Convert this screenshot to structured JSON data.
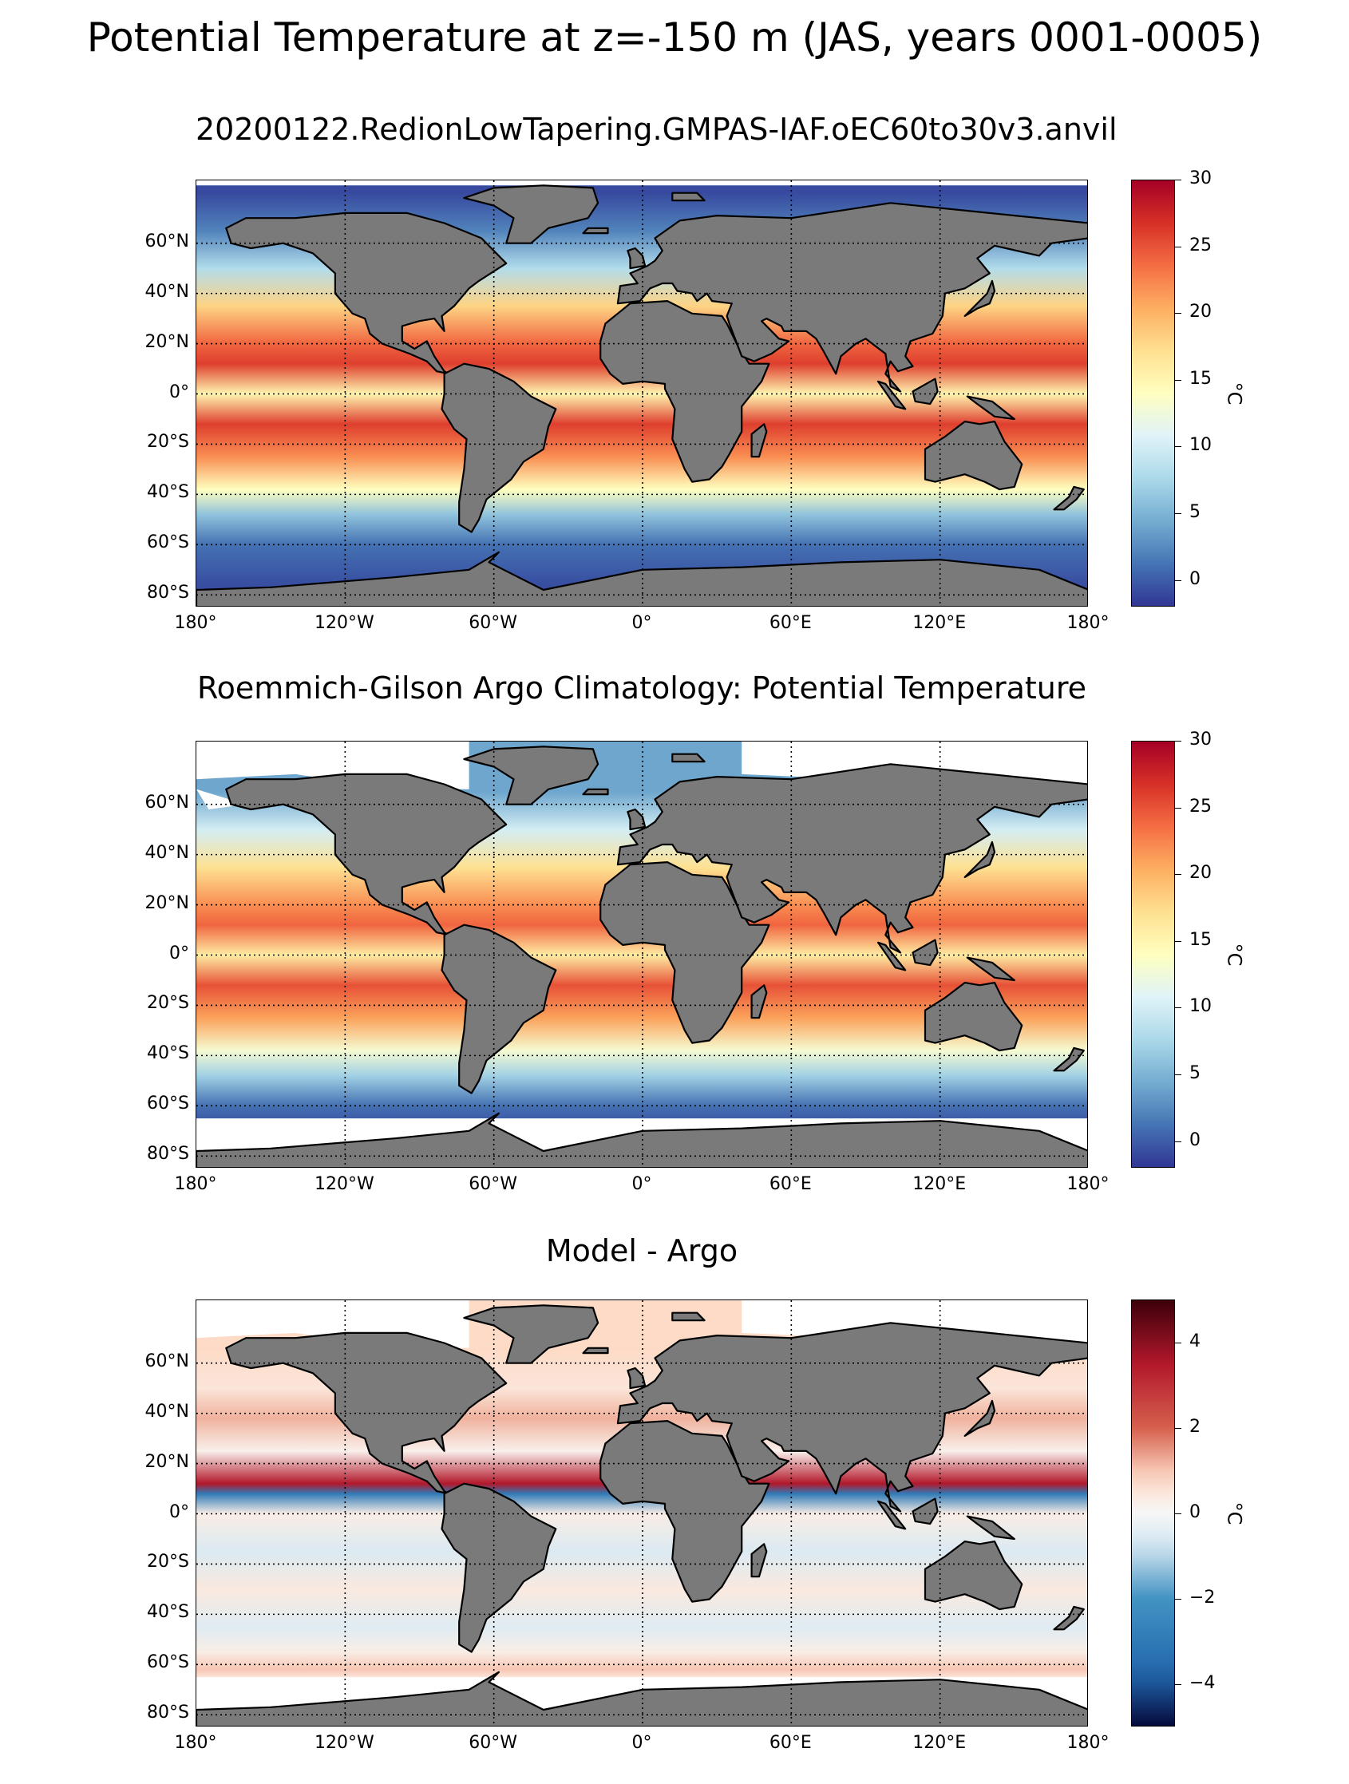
{
  "suptitle": "Potential Temperature at z=-150 m (JAS, years 0001-0005)",
  "colors": {
    "land": "#7a7a7a",
    "missing": "#ffffff",
    "coast": "#000000"
  },
  "lat_labels": [
    "60°N",
    "40°N",
    "20°N",
    "0°",
    "20°S",
    "40°S",
    "60°S",
    "80°S"
  ],
  "lon_labels": [
    "180°",
    "120°W",
    "60°W",
    "0°",
    "60°E",
    "120°E",
    "180°"
  ],
  "chart_data": [
    {
      "type": "heatmap",
      "title": "20200122.RedionLowTapering.GMPAS-IAF.oEC60to30v3.anvil",
      "colormap": "RdYlBu_r",
      "colorbar": {
        "ticks": [
          "30",
          "25",
          "20",
          "15",
          "10",
          "5",
          "0"
        ],
        "range": [
          -2,
          30
        ],
        "label": "°C"
      },
      "lon_range": [
        -180,
        180
      ],
      "lat_range": [
        -85,
        85
      ],
      "grid": true,
      "zonal_profile": [
        {
          "lat": 80,
          "value": -1
        },
        {
          "lat": 65,
          "value": 2
        },
        {
          "lat": 50,
          "value": 8
        },
        {
          "lat": 35,
          "value": 18
        },
        {
          "lat": 20,
          "value": 24
        },
        {
          "lat": 12,
          "value": 26
        },
        {
          "lat": 0,
          "value": 15
        },
        {
          "lat": -12,
          "value": 26
        },
        {
          "lat": -25,
          "value": 22
        },
        {
          "lat": -38,
          "value": 14
        },
        {
          "lat": -48,
          "value": 6
        },
        {
          "lat": -60,
          "value": 1
        },
        {
          "lat": -78,
          "value": -1
        }
      ]
    },
    {
      "type": "heatmap",
      "title": "Roemmich-Gilson Argo Climatology: Potential Temperature",
      "colormap": "RdYlBu_r",
      "colorbar": {
        "ticks": [
          "30",
          "25",
          "20",
          "15",
          "10",
          "5",
          "0"
        ],
        "range": [
          -2,
          30
        ],
        "label": "°C"
      },
      "lon_range": [
        -180,
        180
      ],
      "lat_range": [
        -85,
        85
      ],
      "grid": true,
      "zonal_profile": [
        {
          "lat": 65,
          "value": 4
        },
        {
          "lat": 50,
          "value": 10
        },
        {
          "lat": 35,
          "value": 17
        },
        {
          "lat": 20,
          "value": 22
        },
        {
          "lat": 12,
          "value": 24
        },
        {
          "lat": 0,
          "value": 16
        },
        {
          "lat": -12,
          "value": 25
        },
        {
          "lat": -25,
          "value": 21
        },
        {
          "lat": -38,
          "value": 13
        },
        {
          "lat": -48,
          "value": 7
        },
        {
          "lat": -60,
          "value": 1
        },
        {
          "lat": -65,
          "value": 0
        }
      ]
    },
    {
      "type": "heatmap",
      "title": "Model - Argo",
      "colormap": "RdBu_r",
      "colorbar": {
        "ticks": [
          "4",
          "2",
          "0",
          "−2",
          "−4"
        ],
        "range": [
          -5,
          5
        ],
        "label": "°C"
      },
      "lon_range": [
        -180,
        180
      ],
      "lat_range": [
        -85,
        85
      ],
      "grid": true,
      "zonal_profile": [
        {
          "lat": 65,
          "value": 0.8
        },
        {
          "lat": 50,
          "value": 0.5
        },
        {
          "lat": 38,
          "value": 1.2
        },
        {
          "lat": 25,
          "value": 0.2
        },
        {
          "lat": 12,
          "value": 3.5
        },
        {
          "lat": 8,
          "value": -3.0
        },
        {
          "lat": 0,
          "value": 0.3
        },
        {
          "lat": -15,
          "value": -0.6
        },
        {
          "lat": -30,
          "value": 0.4
        },
        {
          "lat": -45,
          "value": -0.5
        },
        {
          "lat": -55,
          "value": 0.3
        },
        {
          "lat": -62,
          "value": 1.0
        },
        {
          "lat": -65,
          "value": 0.5
        }
      ]
    }
  ]
}
